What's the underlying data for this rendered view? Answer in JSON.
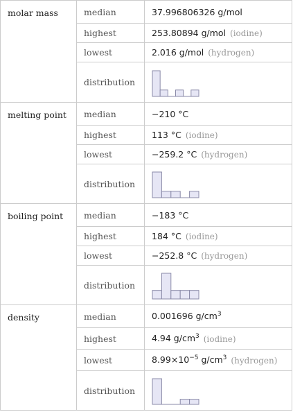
{
  "properties": [
    {
      "name": "molar mass",
      "rows": [
        {
          "label": "median",
          "value": [
            "37.996806326 g/mol"
          ]
        },
        {
          "label": "highest",
          "value": [
            "253.80894 g/mol"
          ],
          "note": "(iodine)"
        },
        {
          "label": "lowest",
          "value": [
            "2.016 g/mol"
          ],
          "note": "(hydrogen)"
        }
      ],
      "distribution_label": "distribution",
      "distribution": [
        4,
        1,
        0,
        1,
        0,
        1
      ]
    },
    {
      "name": "melting point",
      "rows": [
        {
          "label": "median",
          "value": [
            "−210 °C"
          ]
        },
        {
          "label": "highest",
          "value": [
            "113 °C"
          ],
          "note": "(iodine)"
        },
        {
          "label": "lowest",
          "value": [
            "−259.2 °C"
          ],
          "note": "(hydrogen)"
        }
      ],
      "distribution_label": "distribution",
      "distribution": [
        4,
        1,
        1,
        0,
        1
      ]
    },
    {
      "name": "boiling point",
      "rows": [
        {
          "label": "median",
          "value": [
            "−183 °C"
          ]
        },
        {
          "label": "highest",
          "value": [
            "184 °C"
          ],
          "note": "(iodine)"
        },
        {
          "label": "lowest",
          "value": [
            "−252.8 °C"
          ],
          "note": "(hydrogen)"
        }
      ],
      "distribution_label": "distribution",
      "distribution": [
        1,
        3,
        1,
        1,
        1
      ]
    },
    {
      "name": "density",
      "rows": [
        {
          "label": "median",
          "value": [
            "0.001696 g/cm",
            "3"
          ]
        },
        {
          "label": "highest",
          "value": [
            "4.94 g/cm",
            "3"
          ],
          "note": "(iodine)"
        },
        {
          "label": "lowest",
          "value": [
            "8.99×10",
            "−5",
            " g/cm",
            "3"
          ],
          "note": "(hydrogen)"
        }
      ],
      "distribution_label": "distribution",
      "distribution": [
        5,
        0,
        0,
        1,
        1
      ]
    }
  ]
}
